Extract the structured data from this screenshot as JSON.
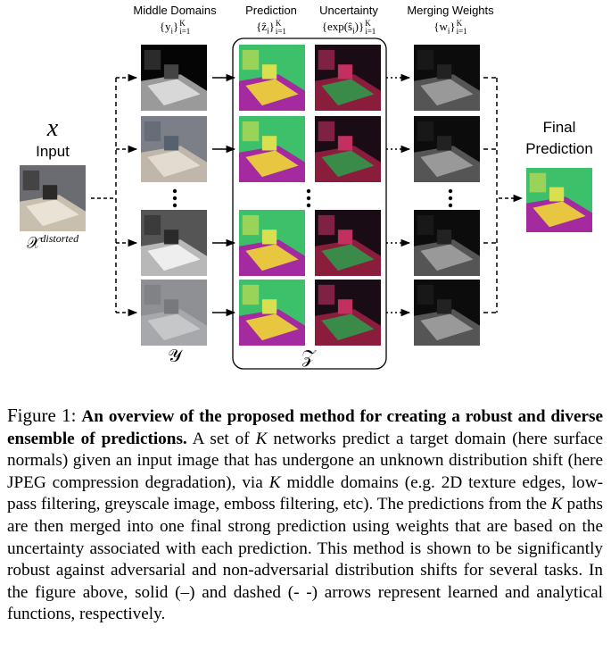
{
  "figure": {
    "columns": [
      {
        "title": "Middle Domains",
        "notation": {
          "pre": "{y",
          "idx": "i",
          "post": "}",
          "upper": "K",
          "lower": "i=1"
        }
      },
      {
        "title": "Prediction",
        "notation": {
          "pre": "{ẑ",
          "idx": "i",
          "post": "}",
          "upper": "K",
          "lower": "i=1"
        }
      },
      {
        "title": "Uncertainty",
        "notation": {
          "pre": "{exp(ŝ",
          "idx": "i",
          "post": ")}",
          "upper": "K",
          "lower": "i=1"
        }
      },
      {
        "title": "Merging Weights",
        "notation": {
          "pre": "{w",
          "idx": "i",
          "post": "}",
          "upper": "K",
          "lower": "i=1"
        }
      }
    ],
    "input": {
      "symbol": "x",
      "label": "Input",
      "distorted_base": "𝒳",
      "distorted_sup": "distorted"
    },
    "middle_set": "𝒴",
    "prediction_set": "𝒵",
    "final": [
      "Final",
      "Prediction"
    ]
  },
  "caption": {
    "label": "Figure 1:",
    "bold": "An overview of the proposed method for creating a robust and diverse ensemble of predictions.",
    "body": [
      " A set of ",
      "K",
      " networks predict a target domain (here surface normals) given an input image that has undergone an unknown distribution shift (here JPEG compression degradation), via ",
      "K",
      " middle domains (e.g. 2D texture edges, low-pass filtering, greyscale image, emboss filtering, etc). The predictions from the ",
      "K",
      " paths are then merged into one final strong prediction using weights that are based on the uncertainty associated with each prediction. This method is shown to be significantly robust against adversarial and non-adversarial distribution shifts for several tasks. In the figure above, solid (–) and dashed (- -) arrows represent learned and analytical functions, respectively."
    ]
  }
}
